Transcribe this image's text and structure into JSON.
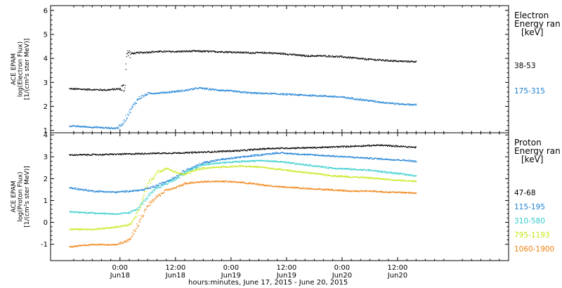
{
  "chart_data": [
    {
      "type": "scatter",
      "ylabel_lines": [
        "ACE EPAM",
        "log(Electron Flux)",
        "[1/(cm²s ster MeV)]"
      ],
      "ylim": [
        0.9,
        6.2
      ],
      "y_ticks": [
        "1",
        "2",
        "3",
        "4",
        "5",
        "6"
      ],
      "legend_title": [
        "Electron",
        "Energy ran",
        "[keV]"
      ],
      "series": [
        {
          "name": "38-53",
          "color": "#000000",
          "points": [
            [
              -11,
              2.75
            ],
            [
              -7,
              2.72
            ],
            [
              -3,
              2.7
            ],
            [
              0,
              2.75
            ],
            [
              1,
              2.8
            ],
            [
              1.3,
              4.2
            ],
            [
              4,
              4.25
            ],
            [
              8,
              4.3
            ],
            [
              12,
              4.3
            ],
            [
              16,
              4.32
            ],
            [
              20,
              4.3
            ],
            [
              24,
              4.28
            ],
            [
              28,
              4.25
            ],
            [
              32,
              4.25
            ],
            [
              36,
              4.2
            ],
            [
              40,
              4.12
            ],
            [
              44,
              4.12
            ],
            [
              48,
              4.08
            ],
            [
              52,
              4.0
            ],
            [
              56,
              3.95
            ],
            [
              60,
              3.9
            ],
            [
              64,
              3.88
            ]
          ]
        },
        {
          "name": "175-315",
          "color": "#1a7fd4",
          "points": [
            [
              -11,
              1.2
            ],
            [
              -6,
              1.15
            ],
            [
              -1,
              1.1
            ],
            [
              0,
              1.2
            ],
            [
              1,
              1.45
            ],
            [
              2,
              1.8
            ],
            [
              3,
              2.1
            ],
            [
              4,
              2.35
            ],
            [
              6,
              2.55
            ],
            [
              10,
              2.6
            ],
            [
              14,
              2.68
            ],
            [
              17,
              2.78
            ],
            [
              20,
              2.72
            ],
            [
              24,
              2.65
            ],
            [
              28,
              2.58
            ],
            [
              32,
              2.55
            ],
            [
              36,
              2.52
            ],
            [
              40,
              2.48
            ],
            [
              44,
              2.45
            ],
            [
              48,
              2.4
            ],
            [
              52,
              2.3
            ],
            [
              56,
              2.2
            ],
            [
              60,
              2.12
            ],
            [
              64,
              2.08
            ]
          ]
        }
      ]
    },
    {
      "type": "scatter",
      "ylabel_lines": [
        "ACE EPAM",
        "log(Proton Flux)",
        "[1/(cm²s ster MeV)]"
      ],
      "ylim": [
        -1.75,
        4.1
      ],
      "y_ticks": [
        "-1",
        "0",
        "1",
        "2",
        "3",
        "4"
      ],
      "legend_title": [
        "Proton",
        "Energy ran",
        "[keV]"
      ],
      "series": [
        {
          "name": "47-68",
          "color": "#000000",
          "points": [
            [
              -11,
              3.1
            ],
            [
              -4,
              3.12
            ],
            [
              2,
              3.15
            ],
            [
              8,
              3.18
            ],
            [
              14,
              3.2
            ],
            [
              20,
              3.25
            ],
            [
              26,
              3.3
            ],
            [
              32,
              3.4
            ],
            [
              38,
              3.42
            ],
            [
              44,
              3.45
            ],
            [
              50,
              3.5
            ],
            [
              56,
              3.55
            ],
            [
              60,
              3.5
            ],
            [
              64,
              3.45
            ]
          ]
        },
        {
          "name": "115-195",
          "color": "#1a7fd4",
          "points": [
            [
              -11,
              1.6
            ],
            [
              -6,
              1.45
            ],
            [
              -1,
              1.4
            ],
            [
              2,
              1.45
            ],
            [
              5,
              1.5
            ],
            [
              8,
              1.7
            ],
            [
              10,
              1.9
            ],
            [
              12,
              2.1
            ],
            [
              14,
              2.4
            ],
            [
              16,
              2.55
            ],
            [
              18,
              2.75
            ],
            [
              22,
              2.9
            ],
            [
              26,
              3.0
            ],
            [
              30,
              3.1
            ],
            [
              34,
              3.2
            ],
            [
              38,
              3.15
            ],
            [
              42,
              3.1
            ],
            [
              46,
              3.05
            ],
            [
              50,
              3.0
            ],
            [
              54,
              2.95
            ],
            [
              58,
              2.9
            ],
            [
              62,
              2.85
            ],
            [
              64,
              2.8
            ]
          ]
        },
        {
          "name": "310-580",
          "color": "#33cccc",
          "points": [
            [
              -11,
              0.5
            ],
            [
              -6,
              0.45
            ],
            [
              -1,
              0.4
            ],
            [
              2,
              0.45
            ],
            [
              4,
              0.7
            ],
            [
              6,
              1.2
            ],
            [
              8,
              1.6
            ],
            [
              10,
              1.8
            ],
            [
              12,
              2.0
            ],
            [
              14,
              2.3
            ],
            [
              16,
              2.5
            ],
            [
              18,
              2.65
            ],
            [
              22,
              2.75
            ],
            [
              26,
              2.8
            ],
            [
              30,
              2.85
            ],
            [
              34,
              2.8
            ],
            [
              38,
              2.7
            ],
            [
              42,
              2.6
            ],
            [
              46,
              2.5
            ],
            [
              50,
              2.45
            ],
            [
              54,
              2.4
            ],
            [
              58,
              2.3
            ],
            [
              62,
              2.2
            ],
            [
              64,
              2.15
            ]
          ]
        },
        {
          "name": "795-1193",
          "color": "#c8e614",
          "points": [
            [
              -11,
              -0.3
            ],
            [
              -6,
              -0.3
            ],
            [
              -1,
              -0.2
            ],
            [
              2,
              -0.1
            ],
            [
              4,
              0.5
            ],
            [
              5,
              1.2
            ],
            [
              6,
              1.8
            ],
            [
              8,
              2.3
            ],
            [
              10,
              2.5
            ],
            [
              12,
              2.3
            ],
            [
              14,
              2.2
            ],
            [
              16,
              2.4
            ],
            [
              18,
              2.5
            ],
            [
              22,
              2.55
            ],
            [
              26,
              2.6
            ],
            [
              30,
              2.55
            ],
            [
              34,
              2.45
            ],
            [
              38,
              2.35
            ],
            [
              42,
              2.25
            ],
            [
              46,
              2.15
            ],
            [
              50,
              2.1
            ],
            [
              54,
              2.05
            ],
            [
              58,
              1.98
            ],
            [
              62,
              1.92
            ],
            [
              64,
              1.9
            ]
          ]
        },
        {
          "name": "1060-1900",
          "color": "#f08010",
          "points": [
            [
              -11,
              -1.1
            ],
            [
              -6,
              -1.0
            ],
            [
              -1,
              -1.0
            ],
            [
              2,
              -0.8
            ],
            [
              4,
              0.0
            ],
            [
              6,
              0.8
            ],
            [
              8,
              1.2
            ],
            [
              10,
              1.5
            ],
            [
              12,
              1.6
            ],
            [
              14,
              1.8
            ],
            [
              16,
              1.85
            ],
            [
              18,
              1.88
            ],
            [
              22,
              1.9
            ],
            [
              26,
              1.85
            ],
            [
              30,
              1.75
            ],
            [
              34,
              1.65
            ],
            [
              38,
              1.6
            ],
            [
              42,
              1.55
            ],
            [
              46,
              1.5
            ],
            [
              50,
              1.45
            ],
            [
              54,
              1.45
            ],
            [
              58,
              1.4
            ],
            [
              62,
              1.38
            ],
            [
              64,
              1.35
            ]
          ]
        }
      ]
    }
  ],
  "x_axis": {
    "xlabel": "hours:minutes, June 17, 2015 - June 20, 2015",
    "xlim": [
      -15,
      84
    ],
    "ticks": [
      {
        "h": 0,
        "time": "0:00",
        "date": "Jun18"
      },
      {
        "h": 12,
        "time": "12:00",
        "date": "Jun18"
      },
      {
        "h": 24,
        "time": "0:00",
        "date": "Jun19"
      },
      {
        "h": 36,
        "time": "12:00",
        "date": "Jun19"
      },
      {
        "h": 48,
        "time": "0:00",
        "date": "Jun20"
      },
      {
        "h": 60,
        "time": "12:00",
        "date": "Jun20"
      }
    ]
  }
}
